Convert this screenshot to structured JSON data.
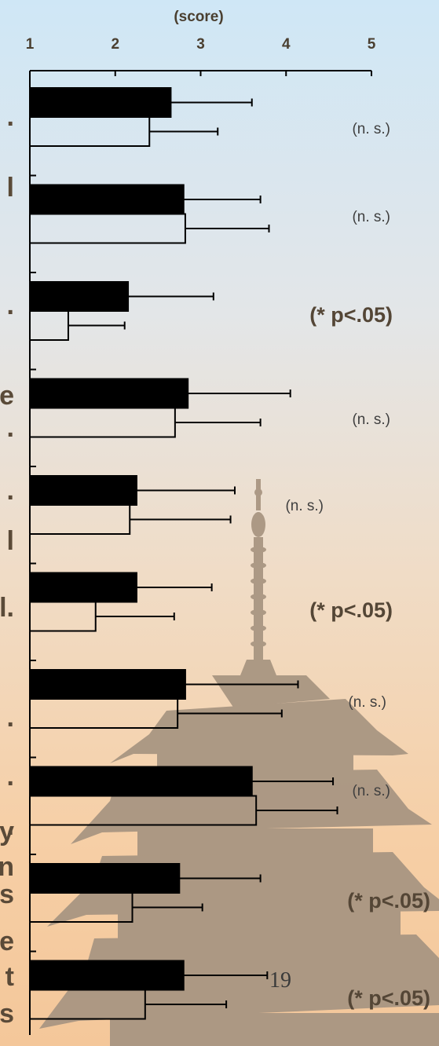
{
  "chart_data": {
    "type": "bar",
    "orientation": "horizontal",
    "xlabel": "(score)",
    "xlim": [
      1,
      5
    ],
    "xticks": [
      "1",
      "2",
      "3",
      "4",
      "5"
    ],
    "grid": false,
    "groups": [
      {
        "series": [
          {
            "value": 2.65,
            "error": 0.95,
            "fill": "filled"
          },
          {
            "value": 2.4,
            "error": 0.8,
            "fill": "open"
          }
        ],
        "annotation": "(n. s.)",
        "significant": false
      },
      {
        "series": [
          {
            "value": 2.8,
            "error": 0.9,
            "fill": "filled"
          },
          {
            "value": 2.82,
            "error": 0.98,
            "fill": "open"
          }
        ],
        "annotation": "(n. s.)",
        "significant": false
      },
      {
        "series": [
          {
            "value": 2.15,
            "error": 1.0,
            "fill": "filled"
          },
          {
            "value": 1.45,
            "error": 0.66,
            "fill": "open"
          }
        ],
        "annotation": "(* p<.05)",
        "significant": true
      },
      {
        "series": [
          {
            "value": 2.85,
            "error": 1.2,
            "fill": "filled"
          },
          {
            "value": 2.7,
            "error": 1.0,
            "fill": "open"
          }
        ],
        "annotation": "(n. s.)",
        "significant": false
      },
      {
        "series": [
          {
            "value": 2.25,
            "error": 1.15,
            "fill": "filled"
          },
          {
            "value": 2.17,
            "error": 1.18,
            "fill": "open"
          }
        ],
        "annotation": "(n. s.)",
        "significant": false
      },
      {
        "series": [
          {
            "value": 2.25,
            "error": 0.88,
            "fill": "filled"
          },
          {
            "value": 1.77,
            "error": 0.92,
            "fill": "open"
          }
        ],
        "annotation": "(* p<.05)",
        "significant": true
      },
      {
        "series": [
          {
            "value": 2.82,
            "error": 1.32,
            "fill": "filled"
          },
          {
            "value": 2.73,
            "error": 1.22,
            "fill": "open"
          }
        ],
        "annotation": "(n. s.)",
        "significant": false
      },
      {
        "series": [
          {
            "value": 3.6,
            "error": 0.95,
            "fill": "filled"
          },
          {
            "value": 3.65,
            "error": 0.95,
            "fill": "open"
          }
        ],
        "annotation": "(n. s.)",
        "significant": false
      },
      {
        "series": [
          {
            "value": 2.75,
            "error": 0.95,
            "fill": "filled"
          },
          {
            "value": 2.2,
            "error": 0.82,
            "fill": "open"
          }
        ],
        "annotation": "(* p<.05)",
        "significant": true
      },
      {
        "series": [
          {
            "value": 2.8,
            "error": 0.98,
            "fill": "filled"
          },
          {
            "value": 2.35,
            "error": 0.95,
            "fill": "open"
          }
        ],
        "annotation": "(* p<.05)",
        "significant": true
      }
    ],
    "colors": {
      "filled": "#000000",
      "open": "#ffffff",
      "significant_text": "#544636",
      "ns_text": "#3f3f3f"
    }
  },
  "page_number": "19",
  "edge_glyphs": [
    ".",
    "l",
    ".",
    "e",
    ".",
    ".",
    "l",
    "l.",
    ".",
    ".",
    ".",
    "y",
    "n",
    "s",
    "e",
    "t",
    "s"
  ]
}
